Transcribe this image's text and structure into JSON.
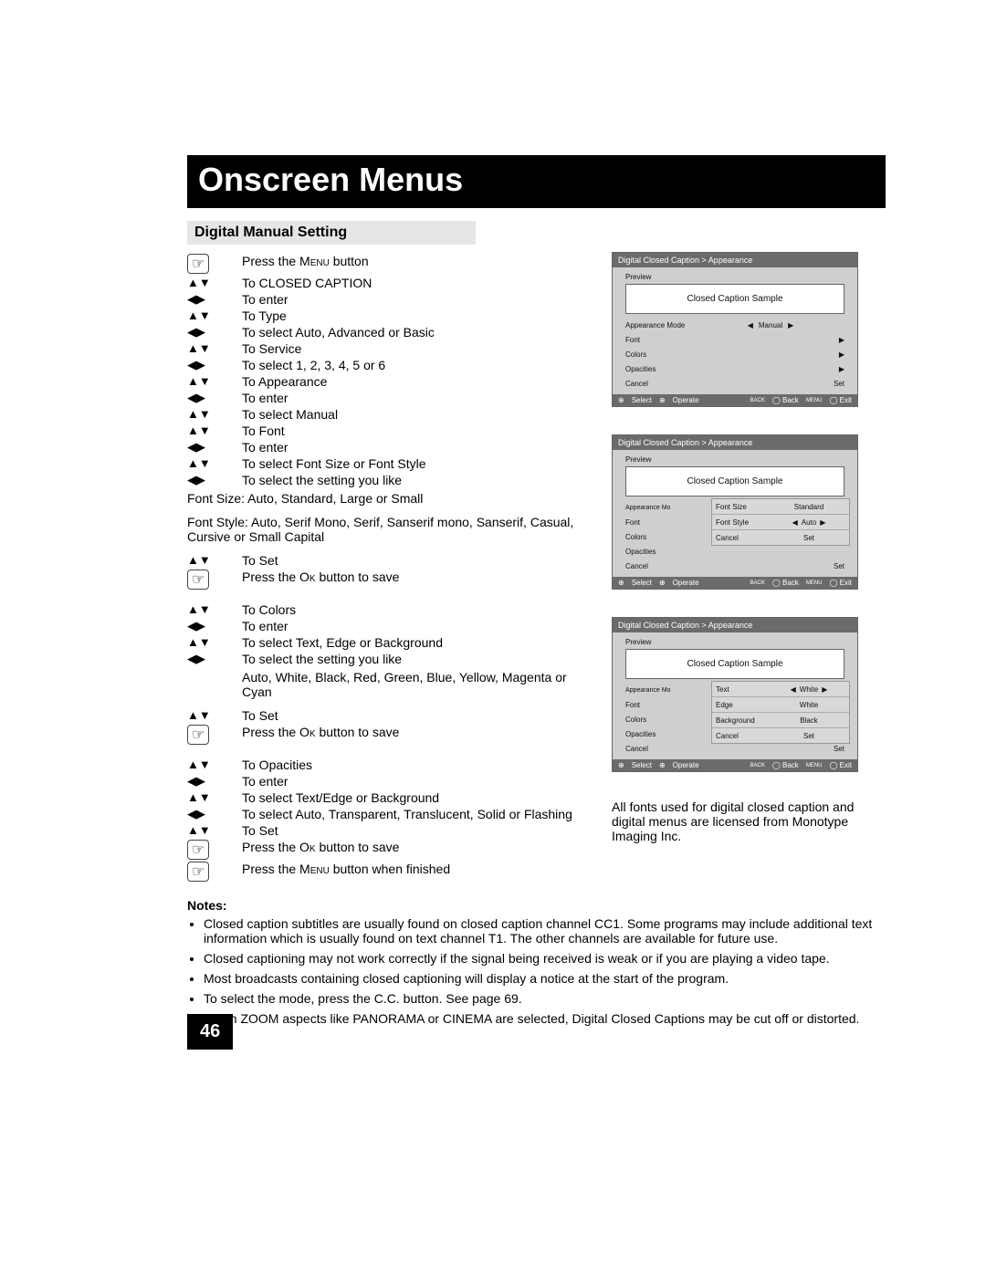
{
  "page": {
    "number": "46",
    "title": "Onscreen Menus",
    "subheading": "Digital Manual Setting"
  },
  "icons": {
    "hand": "☞",
    "updown": "▲▼",
    "leftright": "◀▶"
  },
  "steps_a": [
    {
      "icon": "hand",
      "text": "Press the MENU button"
    },
    {
      "icon": "updown",
      "text": "To CLOSED CAPTION"
    },
    {
      "icon": "leftright",
      "text": "To enter"
    },
    {
      "icon": "updown",
      "text": "To Type"
    },
    {
      "icon": "leftright",
      "text": "To select Auto, Advanced or Basic"
    },
    {
      "icon": "updown",
      "text": "To Service"
    },
    {
      "icon": "leftright",
      "text": "To select 1, 2, 3, 4, 5 or 6"
    },
    {
      "icon": "updown",
      "text": "To Appearance"
    },
    {
      "icon": "leftright",
      "text": "To enter"
    },
    {
      "icon": "updown",
      "text": "To select Manual"
    },
    {
      "icon": "updown",
      "text": "To Font"
    },
    {
      "icon": "leftright",
      "text": "To enter"
    },
    {
      "icon": "updown",
      "text": "To select Font Size or Font Style"
    },
    {
      "icon": "leftright",
      "text": "To select the setting you like"
    }
  ],
  "flow1": "Font Size: Auto, Standard, Large or Small",
  "flow2": "Font Style: Auto, Serif Mono, Serif, Sanserif mono, Sanserif, Casual, Cursive or Small Capital",
  "steps_b": [
    {
      "icon": "updown",
      "text": "To Set"
    },
    {
      "icon": "hand",
      "text": "Press the OK button to save"
    }
  ],
  "steps_c": [
    {
      "icon": "updown",
      "text": "To Colors"
    },
    {
      "icon": "leftright",
      "text": "To enter"
    },
    {
      "icon": "updown",
      "text": "To select Text, Edge or Background"
    },
    {
      "icon": "leftright",
      "text": "To select the setting you like"
    }
  ],
  "colors_options": "Auto, White, Black, Red, Green, Blue, Yellow, Magenta or Cyan",
  "steps_d": [
    {
      "icon": "updown",
      "text": "To Set"
    },
    {
      "icon": "hand",
      "text": "Press the OK button to save"
    }
  ],
  "steps_e": [
    {
      "icon": "updown",
      "text": "To Opacities"
    },
    {
      "icon": "leftright",
      "text": "To enter"
    },
    {
      "icon": "updown",
      "text": "To select Text/Edge or Background"
    },
    {
      "icon": "leftright",
      "text": "To select Auto, Transparent, Translucent, Solid or Flashing"
    },
    {
      "icon": "updown",
      "text": "To Set"
    },
    {
      "icon": "hand",
      "text": "Press the OK button to save"
    },
    {
      "icon": "hand",
      "text": "Press the MENU button when finished"
    }
  ],
  "panel_common": {
    "breadcrumb": "Digital Closed Caption  >  Appearance",
    "preview_label": "Preview",
    "preview_text": "Closed Caption Sample",
    "footer": {
      "select": "Select",
      "operate": "Operate",
      "back": "Back",
      "back_sup": "BACK",
      "exit": "Exit",
      "exit_sup": "MENU"
    },
    "labels": {
      "mode": "Appearance Mode",
      "font": "Font",
      "colors": "Colors",
      "opacities": "Opacities",
      "cancel": "Cancel",
      "set": "Set"
    }
  },
  "panel1": {
    "mode_value": "Manual"
  },
  "panel2": {
    "sub": {
      "font_size": {
        "label": "Font Size",
        "value": "Standard"
      },
      "font_style": {
        "label": "Font Style",
        "value": "Auto"
      },
      "cancel": "Cancel",
      "set": "Set"
    }
  },
  "panel3": {
    "sub": {
      "text": {
        "label": "Text",
        "value": "White"
      },
      "edge": {
        "label": "Edge",
        "value": "White"
      },
      "background": {
        "label": "Background",
        "value": "Black"
      },
      "cancel": "Cancel",
      "set": "Set"
    }
  },
  "license_text": "All fonts used for digital closed caption and digital menus are licensed from Monotype Imaging Inc.",
  "notes_title": "Notes:",
  "notes": [
    "Closed caption subtitles are usually found on closed caption channel CC1. Some programs may include additional text information which is usually found on text channel T1. The other channels are available for future use.",
    "Closed captioning may not work correctly if the signal being received is weak or if you are playing a video tape.",
    "Most broadcasts containing closed captioning will display a notice at the start of the program.",
    "To select the mode, press the C.C. button. See page 69.",
    "When ZOOM aspects like PANORAMA or CINEMA are selected, Digital Closed Captions may be cut off or distorted."
  ]
}
